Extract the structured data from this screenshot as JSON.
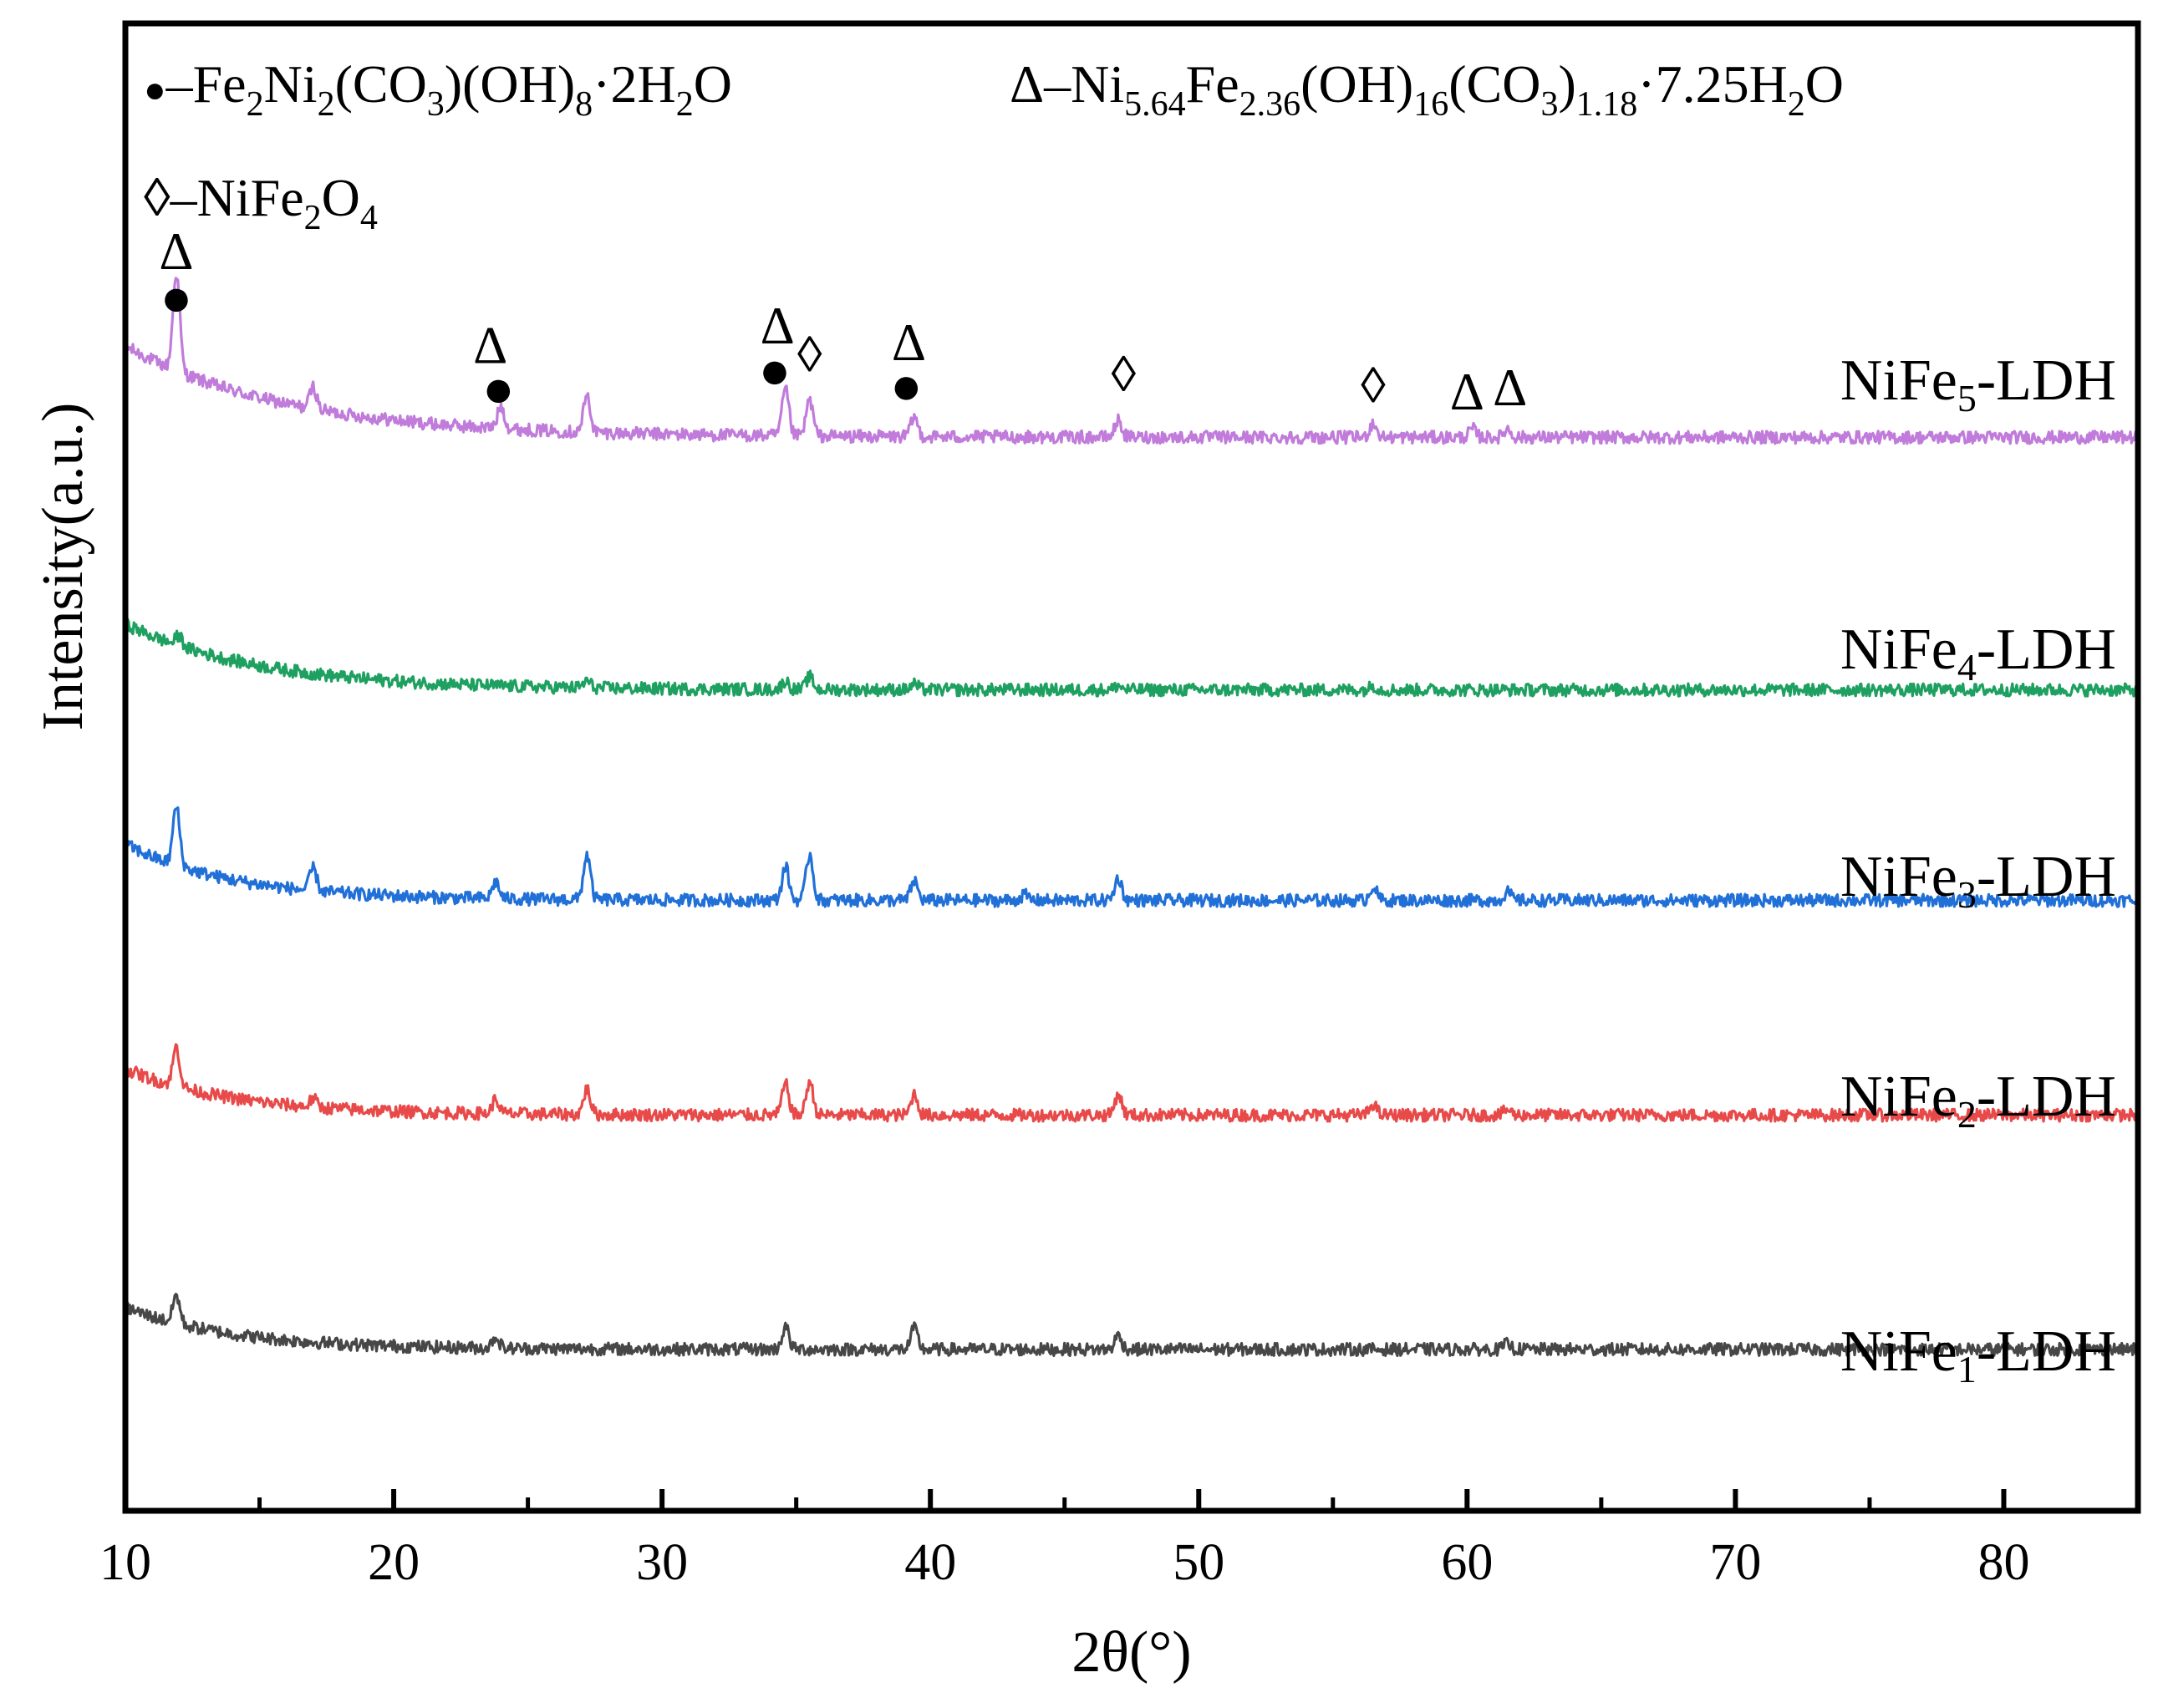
{
  "chart_data": {
    "type": "line",
    "title": "",
    "xlabel": "2θ(°)",
    "ylabel": "Intensity(a.u.)",
    "xlim": [
      10,
      85
    ],
    "xticks": [
      10,
      20,
      30,
      40,
      50,
      60,
      70,
      80
    ],
    "xtick_labels": [
      "10",
      "20",
      "30",
      "40",
      "50",
      "60",
      "70",
      "80"
    ],
    "y_ticks_shown": false,
    "grid": false,
    "legend": {
      "placement": "top",
      "entries": [
        {
          "symbol": "●",
          "symbol_name": "filled-circle",
          "prefix": "–",
          "parts": [
            "Fe",
            "2",
            "Ni",
            "2",
            "(CO",
            "3",
            ")(OH)",
            "8",
            "·2H",
            "2",
            "O"
          ],
          "subs": [
            1,
            3,
            5,
            7,
            9
          ]
        },
        {
          "symbol": "Δ",
          "symbol_name": "triangle",
          "prefix": "–",
          "parts": [
            "Ni",
            "5.64",
            "Fe",
            "2.36",
            "(OH)",
            "16",
            "(CO",
            "3",
            ")",
            "1.18",
            "·7.25H",
            "2",
            "O"
          ],
          "subs": [
            1,
            3,
            5,
            7,
            9,
            11
          ]
        },
        {
          "symbol": "◊",
          "symbol_name": "diamond",
          "prefix": "–",
          "parts": [
            "NiFe",
            "2",
            "O",
            "4"
          ],
          "subs": [
            1,
            3
          ]
        }
      ]
    },
    "y_units": "relative offset intensity (0 = baseline of lowest trace, 100 = top of plot)",
    "series": [
      {
        "name": "NiFe5-LDH",
        "label_main": "NiFe",
        "label_sub": "5",
        "label_tail": "-LDH",
        "color": "#C07BDB",
        "baseline": 70.5,
        "start_level": 77,
        "decay_width": 6,
        "peaks": [
          [
            11.9,
            7
          ],
          [
            17,
            1.6
          ],
          [
            24,
            1.6
          ],
          [
            27.2,
            2.6
          ],
          [
            34.6,
            3.3
          ],
          [
            35.5,
            2.6
          ],
          [
            39.4,
            1.4
          ],
          [
            47,
            1.2
          ],
          [
            56.5,
            1
          ],
          [
            60.2,
            0.6
          ],
          [
            61.5,
            0.6
          ]
        ]
      },
      {
        "name": "NiFe4-LDH",
        "label_main": "NiFe",
        "label_sub": "4",
        "label_tail": "-LDH",
        "color": "#1EA060",
        "baseline": 52.5,
        "start_level": 57.2,
        "decay_width": 5,
        "peaks": [
          [
            12,
            0.7
          ],
          [
            27.2,
            0.5
          ],
          [
            34.6,
            0.6
          ],
          [
            35.5,
            0.9
          ],
          [
            39.4,
            0.4
          ],
          [
            47,
            0.3
          ],
          [
            56.5,
            0.3
          ]
        ]
      },
      {
        "name": "NiFe3-LDH",
        "label_main": "NiFe",
        "label_sub": "3",
        "label_tail": "-LDH",
        "color": "#2070D8",
        "baseline": 37.5,
        "start_level": 41.5,
        "decay_width": 4,
        "peaks": [
          [
            11.9,
            4.2
          ],
          [
            17,
            1.6
          ],
          [
            23.8,
            1.2
          ],
          [
            27.2,
            3.2
          ],
          [
            34.6,
            2.4
          ],
          [
            35.5,
            3.3
          ],
          [
            39.4,
            1.4
          ],
          [
            43.5,
            0.4
          ],
          [
            47,
            1.6
          ],
          [
            56.5,
            1
          ],
          [
            61.5,
            0.6
          ]
        ]
      },
      {
        "name": "NiFe2-LDH",
        "label_main": "NiFe",
        "label_sub": "2",
        "label_tail": "-LDH",
        "color": "#E84A4A",
        "baseline": 22.2,
        "start_level": 25.5,
        "decay_width": 4,
        "peaks": [
          [
            11.9,
            2.8
          ],
          [
            17,
            0.6
          ],
          [
            23.8,
            1
          ],
          [
            27.2,
            1.8
          ],
          [
            34.6,
            2.2
          ],
          [
            35.5,
            2.4
          ],
          [
            39.4,
            1.5
          ],
          [
            47,
            1.5
          ],
          [
            56.5,
            0.8
          ],
          [
            61.5,
            0.4
          ]
        ]
      },
      {
        "name": "NiFe1-LDH",
        "label_main": "NiFe",
        "label_sub": "1",
        "label_tail": "-LDH",
        "color": "#474747",
        "baseline": 5.5,
        "start_level": 8.5,
        "decay_width": 4,
        "peaks": [
          [
            11.9,
            2
          ],
          [
            23.8,
            0.8
          ],
          [
            34.6,
            1.6
          ],
          [
            39.4,
            1.5
          ],
          [
            47,
            1
          ],
          [
            61.5,
            0.4
          ]
        ]
      }
    ],
    "annotations": [
      {
        "text": "Δ",
        "x": 11.9,
        "y": 82.5,
        "kind": "triangle"
      },
      {
        "text": "●",
        "x": 11.9,
        "y": 79.2,
        "kind": "filled-circle"
      },
      {
        "text": "Δ",
        "x": 23.6,
        "y": 75.8,
        "kind": "triangle"
      },
      {
        "text": "●",
        "x": 23.9,
        "y": 72.7,
        "kind": "filled-circle"
      },
      {
        "text": "Δ",
        "x": 34.3,
        "y": 77.2,
        "kind": "triangle"
      },
      {
        "text": "●",
        "x": 34.2,
        "y": 74.0,
        "kind": "filled-circle"
      },
      {
        "text": "◊",
        "x": 35.5,
        "y": 75.2,
        "kind": "diamond"
      },
      {
        "text": "Δ",
        "x": 39.2,
        "y": 76.0,
        "kind": "triangle"
      },
      {
        "text": "●",
        "x": 39.1,
        "y": 72.9,
        "kind": "filled-circle"
      },
      {
        "text": "◊",
        "x": 47.2,
        "y": 73.8,
        "kind": "diamond"
      },
      {
        "text": "◊",
        "x": 56.5,
        "y": 73.0,
        "kind": "diamond"
      },
      {
        "text": "Δ",
        "x": 60.0,
        "y": 72.5,
        "kind": "triangle"
      },
      {
        "text": "Δ",
        "x": 61.6,
        "y": 72.8,
        "kind": "triangle"
      }
    ]
  }
}
